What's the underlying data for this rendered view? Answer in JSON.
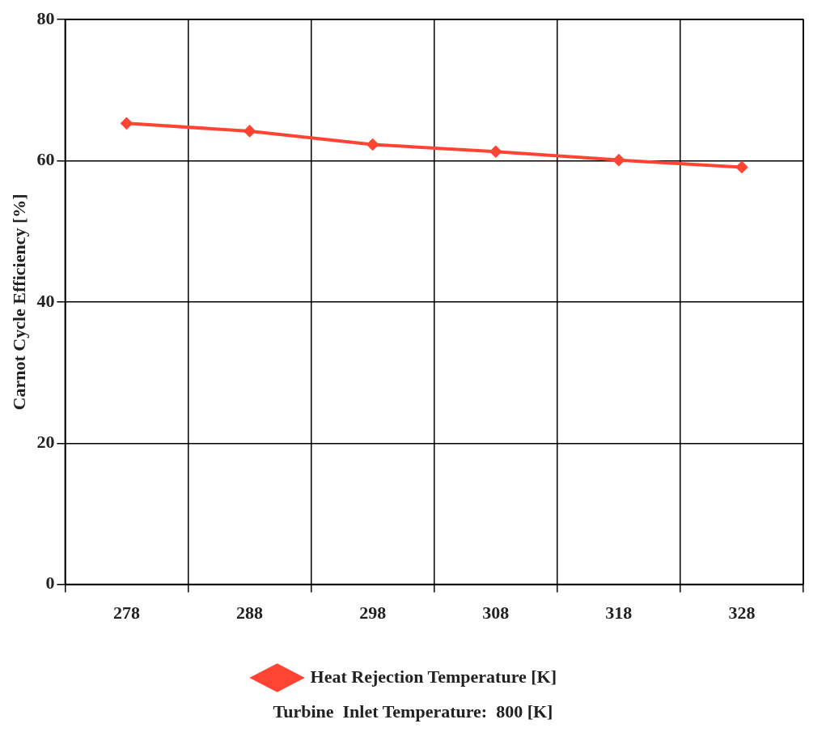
{
  "chart_data": {
    "type": "line",
    "ylabel": "Carnot Cycle Efficiency [%]",
    "categories": [
      "278",
      "288",
      "298",
      "308",
      "318",
      "328"
    ],
    "series": [
      {
        "name": "Heat Rejection Temperature [K]",
        "color": "#ff4433",
        "values": [
          65.3,
          64.2,
          62.3,
          61.3,
          60.1,
          59.1
        ]
      }
    ],
    "ylim": [
      0,
      80
    ],
    "yticks": [
      0,
      20,
      40,
      60,
      80
    ],
    "grid": true,
    "legend": "bottom",
    "marker": "diamond",
    "line_style": "solid",
    "annotations": [
      "Turbine  Inlet Temperature:  800 [K]"
    ]
  }
}
